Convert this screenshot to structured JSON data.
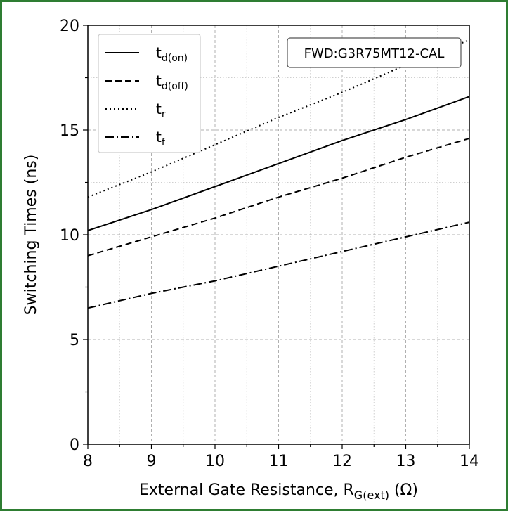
{
  "chart_data": {
    "type": "line",
    "xlabel": "External Gate Resistance, R",
    "xlabel_sub": "G(ext)",
    "xlabel_unit": " (Ω)",
    "ylabel": "Switching Times (ns)",
    "xlim": [
      8,
      14
    ],
    "ylim": [
      0,
      20
    ],
    "x_ticks": [
      "8",
      "9",
      "10",
      "11",
      "12",
      "13",
      "14"
    ],
    "y_ticks": [
      "0",
      "5",
      "10",
      "15",
      "20"
    ],
    "grid": true,
    "legend_position": "top-left",
    "annotation": "FWD:G3R75MT12-CAL",
    "x": [
      8,
      9,
      10,
      11,
      12,
      13,
      14
    ],
    "series": [
      {
        "name": "t",
        "sub": "d(on)",
        "dash": "solid",
        "values": [
          10.2,
          11.2,
          12.3,
          13.4,
          14.5,
          15.5,
          16.6
        ]
      },
      {
        "name": "t",
        "sub": "d(off)",
        "dash": "dashed",
        "values": [
          9.0,
          9.9,
          10.8,
          11.8,
          12.7,
          13.7,
          14.6
        ]
      },
      {
        "name": "t",
        "sub": "r",
        "dash": "dotted",
        "values": [
          11.8,
          13.0,
          14.3,
          15.6,
          16.8,
          18.1,
          19.3
        ]
      },
      {
        "name": "t",
        "sub": "f",
        "dash": "dashdot",
        "values": [
          6.5,
          7.2,
          7.8,
          8.5,
          9.2,
          9.9,
          10.6
        ]
      }
    ]
  }
}
